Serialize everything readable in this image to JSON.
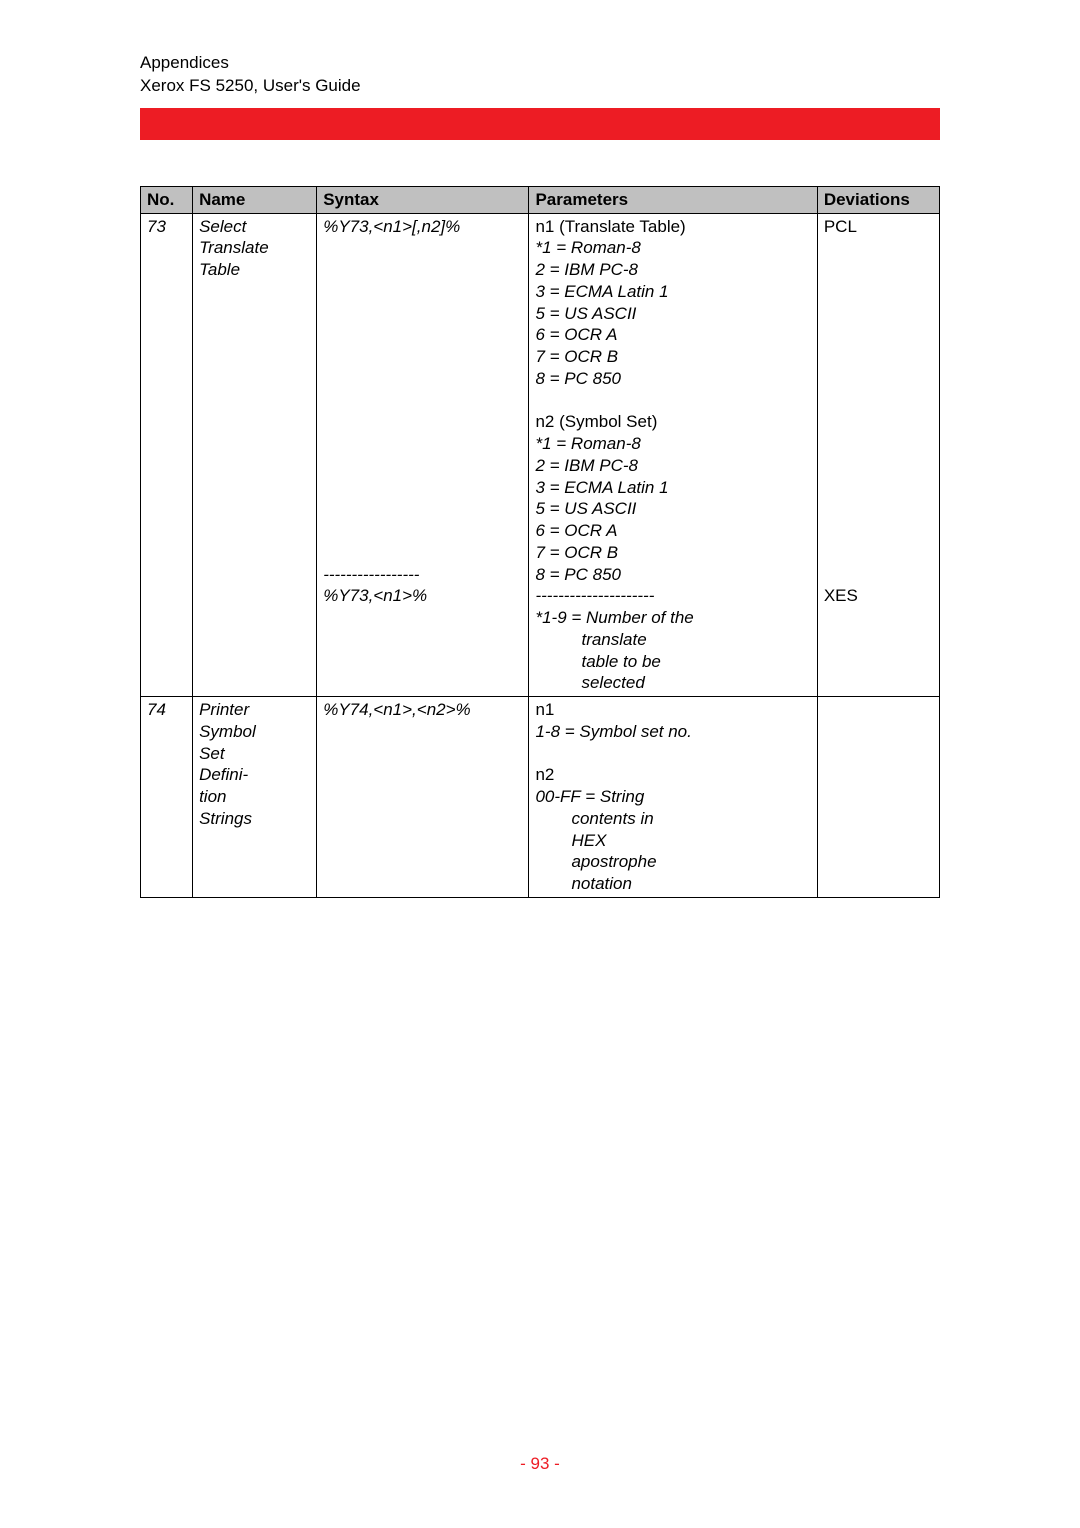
{
  "header": {
    "line1": "Appendices",
    "line2": "Xerox FS 5250, User's Guide"
  },
  "colors": {
    "bar": "#ed1c24",
    "header_bg": "#c0c0c0",
    "text": "#000000",
    "footer": "#ed1c24",
    "background": "#ffffff"
  },
  "table": {
    "headers": {
      "no": "No.",
      "name": "Name",
      "syntax": "Syntax",
      "parameters": "Parameters",
      "deviations": "Deviations"
    },
    "rows": [
      {
        "no": "73",
        "name_l1": "Select",
        "name_l2": "Translate",
        "name_l3": "Table",
        "syntax1": "%Y73,<n1>[,n2]%",
        "syntax_sep": "-----------------",
        "syntax2": "%Y73,<n1>%",
        "p": {
          "n1_title": "n1 (Translate Table)",
          "l1": "*1 = Roman-8",
          "l2": "2 = IBM PC-8",
          "l3": "3 = ECMA Latin 1",
          "l4": "5 = US ASCII",
          "l5": "6 = OCR A",
          "l6": "7 = OCR B",
          "l7": "8 = PC 850",
          "n2_title": "n2 (Symbol Set)",
          "m1": "*1 = Roman-8",
          "m2": "2 = IBM PC-8",
          "m3": "3 = ECMA Latin 1",
          "m4": "5 = US ASCII",
          "m5": "6 = OCR A",
          "m6": "7 = OCR B",
          "m7": "8 = PC 850",
          "sep": "---------------------",
          "x1": "*1-9 = Number of the",
          "x2": "translate",
          "x3": "table to be",
          "x4": "selected"
        },
        "dev1": "PCL",
        "dev2": "XES"
      },
      {
        "no": "74",
        "name_l1": "Printer",
        "name_l2": "Symbol",
        "name_l3": "Set",
        "name_l4": "Defini-",
        "name_l5": "tion",
        "name_l6": "Strings",
        "syntax": "%Y74,<n1>,<n2>%",
        "p": {
          "n1": "n1",
          "l1": "1-8 = Symbol set no.",
          "n2": "n2",
          "l2": "00-FF = String",
          "l3": "contents in",
          "l4": "HEX",
          "l5": "apostrophe",
          "l6": "notation"
        }
      }
    ]
  },
  "footer": {
    "text": "- 93 -"
  }
}
